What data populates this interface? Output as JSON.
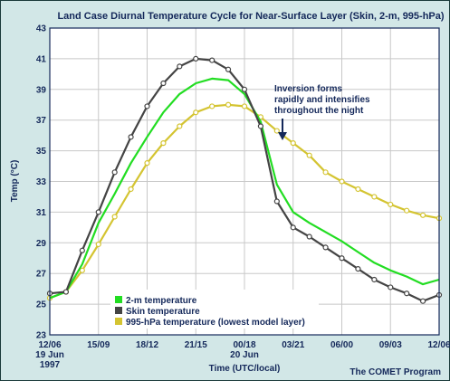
{
  "chart_data": {
    "type": "line",
    "title": "Land Case Diurnal Temperature Cycle for Near-Surface Layer (Skin, 2-m, 995-hPa)",
    "xlabel": "Time (UTC/local)",
    "ylabel": "Temp (°C)",
    "ylim": [
      23,
      43
    ],
    "yticks": [
      23,
      25,
      27,
      29,
      31,
      33,
      35,
      37,
      39,
      41,
      43
    ],
    "x_ticks": [
      {
        "index": 0,
        "lines": [
          "12/06",
          "19 Jun",
          "1997"
        ]
      },
      {
        "index": 3,
        "lines": [
          "15/09"
        ]
      },
      {
        "index": 6,
        "lines": [
          "18/12"
        ]
      },
      {
        "index": 9,
        "lines": [
          "21/15"
        ]
      },
      {
        "index": 12,
        "lines": [
          "00/18",
          "20 Jun"
        ]
      },
      {
        "index": 15,
        "lines": [
          "03/21"
        ]
      },
      {
        "index": 18,
        "lines": [
          "06/00"
        ]
      },
      {
        "index": 21,
        "lines": [
          "09/03"
        ]
      },
      {
        "index": 24,
        "lines": [
          "12/06"
        ]
      }
    ],
    "x_count": 25,
    "grid": true,
    "legend_position": "bottom-left",
    "series": [
      {
        "name": "2-m temperature",
        "color": "#22dd22",
        "marker": false,
        "values": [
          25.4,
          25.8,
          27.6,
          30.3,
          32.2,
          34.2,
          35.9,
          37.5,
          38.7,
          39.4,
          39.7,
          39.6,
          38.7,
          36.9,
          32.8,
          31.0,
          30.3,
          29.7,
          29.1,
          28.4,
          27.7,
          27.2,
          26.8,
          26.3,
          26.6
        ]
      },
      {
        "name": "Skin temperature",
        "color": "#444444",
        "marker": true,
        "values": [
          25.7,
          25.8,
          28.5,
          31.0,
          33.6,
          35.9,
          37.9,
          39.4,
          40.5,
          41.0,
          40.9,
          40.3,
          39.0,
          36.6,
          31.7,
          30.0,
          29.4,
          28.7,
          28.0,
          27.3,
          26.6,
          26.1,
          25.7,
          25.2,
          25.6
        ]
      },
      {
        "name": "995-hPa temperature (lowest model layer)",
        "color": "#d4c431",
        "marker": true,
        "values": [
          25.4,
          25.8,
          27.2,
          28.9,
          30.7,
          32.5,
          34.2,
          35.5,
          36.6,
          37.5,
          37.9,
          38.0,
          37.9,
          37.2,
          36.3,
          35.5,
          34.7,
          33.6,
          33.0,
          32.5,
          32.0,
          31.5,
          31.1,
          30.8,
          30.6
        ]
      }
    ],
    "annotation": {
      "lines": [
        "Inversion forms",
        "rapidly and intensifies",
        "throughout the night"
      ]
    },
    "credit": "The COMET Program"
  }
}
